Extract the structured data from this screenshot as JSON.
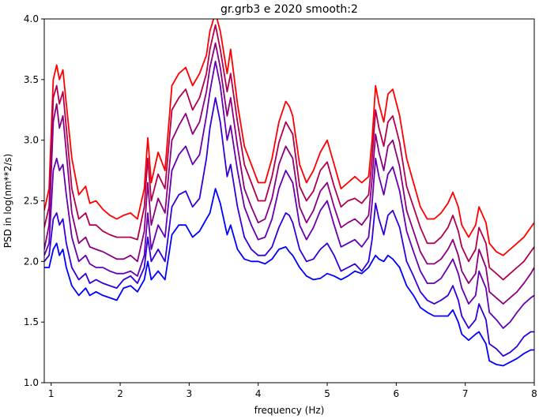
{
  "chart_data": {
    "type": "line",
    "title": "gr.grb3 e 2020 smooth:2",
    "xlabel": "frequency (Hz)",
    "ylabel": "PSD in log(nm**2/s)",
    "xlim": [
      0.9,
      8.0
    ],
    "ylim": [
      1.0,
      4.0
    ],
    "xticks": [
      "1",
      "2",
      "3",
      "4",
      "5",
      "6",
      "7",
      "8"
    ],
    "yticks": [
      "1.0",
      "1.5",
      "2.0",
      "2.5",
      "3.0",
      "3.5",
      "4.0"
    ],
    "grid": false,
    "legend": "none",
    "series": [
      {
        "color": "#ff0000",
        "x": [
          0.9,
          0.97,
          1.03,
          1.08,
          1.12,
          1.17,
          1.22,
          1.3,
          1.4,
          1.5,
          1.56,
          1.65,
          1.75,
          1.85,
          1.95,
          2.05,
          2.15,
          2.25,
          2.35,
          2.4,
          2.45,
          2.55,
          2.65,
          2.75,
          2.85,
          2.95,
          3.05,
          3.15,
          3.25,
          3.3,
          3.38,
          3.45,
          3.55,
          3.6,
          3.7,
          3.8,
          3.9,
          4.0,
          4.1,
          4.2,
          4.3,
          4.4,
          4.45,
          4.5,
          4.6,
          4.7,
          4.8,
          4.9,
          5.0,
          5.1,
          5.2,
          5.3,
          5.4,
          5.5,
          5.6,
          5.65,
          5.7,
          5.75,
          5.82,
          5.88,
          5.95,
          6.05,
          6.15,
          6.25,
          6.35,
          6.45,
          6.55,
          6.65,
          6.75,
          6.82,
          6.9,
          6.95,
          7.05,
          7.15,
          7.2,
          7.3,
          7.35,
          7.45,
          7.55,
          7.65,
          7.75,
          7.85,
          7.95,
          8.0
        ],
        "y": [
          2.42,
          2.6,
          3.5,
          3.62,
          3.5,
          3.58,
          3.3,
          2.85,
          2.55,
          2.62,
          2.48,
          2.5,
          2.43,
          2.38,
          2.35,
          2.38,
          2.4,
          2.35,
          2.6,
          3.02,
          2.65,
          2.9,
          2.75,
          3.45,
          3.55,
          3.6,
          3.45,
          3.55,
          3.7,
          3.9,
          4.05,
          3.9,
          3.55,
          3.75,
          3.3,
          2.95,
          2.8,
          2.65,
          2.65,
          2.85,
          3.15,
          3.32,
          3.28,
          3.2,
          2.8,
          2.65,
          2.75,
          2.9,
          3.0,
          2.8,
          2.6,
          2.65,
          2.7,
          2.65,
          2.7,
          3.0,
          3.45,
          3.3,
          3.15,
          3.38,
          3.42,
          3.2,
          2.85,
          2.65,
          2.45,
          2.35,
          2.35,
          2.4,
          2.48,
          2.57,
          2.45,
          2.3,
          2.2,
          2.3,
          2.45,
          2.32,
          2.15,
          2.08,
          2.05,
          2.1,
          2.15,
          2.2,
          2.28,
          2.32
        ]
      },
      {
        "color": "#b2004d",
        "x": [
          0.9,
          0.97,
          1.03,
          1.08,
          1.12,
          1.17,
          1.22,
          1.3,
          1.4,
          1.5,
          1.56,
          1.65,
          1.75,
          1.85,
          1.95,
          2.05,
          2.15,
          2.25,
          2.35,
          2.4,
          2.45,
          2.55,
          2.65,
          2.75,
          2.85,
          2.95,
          3.05,
          3.15,
          3.25,
          3.3,
          3.38,
          3.45,
          3.55,
          3.6,
          3.7,
          3.8,
          3.9,
          4.0,
          4.1,
          4.2,
          4.3,
          4.4,
          4.45,
          4.5,
          4.6,
          4.7,
          4.8,
          4.9,
          5.0,
          5.1,
          5.2,
          5.3,
          5.4,
          5.5,
          5.6,
          5.65,
          5.7,
          5.75,
          5.82,
          5.88,
          5.95,
          6.05,
          6.15,
          6.25,
          6.35,
          6.45,
          6.55,
          6.65,
          6.75,
          6.82,
          6.9,
          6.95,
          7.05,
          7.15,
          7.2,
          7.3,
          7.35,
          7.45,
          7.55,
          7.65,
          7.75,
          7.85,
          7.95,
          8.0
        ],
        "y": [
          2.28,
          2.45,
          3.35,
          3.45,
          3.3,
          3.4,
          3.1,
          2.6,
          2.35,
          2.4,
          2.3,
          2.3,
          2.25,
          2.22,
          2.2,
          2.2,
          2.2,
          2.18,
          2.45,
          2.85,
          2.5,
          2.72,
          2.6,
          3.25,
          3.35,
          3.42,
          3.25,
          3.35,
          3.55,
          3.75,
          3.95,
          3.75,
          3.4,
          3.55,
          3.15,
          2.8,
          2.65,
          2.5,
          2.5,
          2.7,
          2.98,
          3.15,
          3.1,
          3.05,
          2.62,
          2.5,
          2.58,
          2.75,
          2.82,
          2.62,
          2.45,
          2.5,
          2.52,
          2.48,
          2.55,
          2.85,
          3.25,
          3.1,
          2.95,
          3.15,
          3.2,
          2.98,
          2.62,
          2.45,
          2.28,
          2.15,
          2.15,
          2.2,
          2.28,
          2.38,
          2.25,
          2.12,
          2.0,
          2.1,
          2.28,
          2.15,
          1.95,
          1.9,
          1.85,
          1.9,
          1.95,
          2.0,
          2.08,
          2.12
        ]
      },
      {
        "color": "#8c0080",
        "x": [
          0.9,
          0.97,
          1.03,
          1.08,
          1.12,
          1.17,
          1.22,
          1.3,
          1.4,
          1.5,
          1.56,
          1.65,
          1.75,
          1.85,
          1.95,
          2.05,
          2.15,
          2.25,
          2.35,
          2.4,
          2.45,
          2.55,
          2.65,
          2.75,
          2.85,
          2.95,
          3.05,
          3.15,
          3.25,
          3.3,
          3.38,
          3.45,
          3.55,
          3.6,
          3.7,
          3.8,
          3.9,
          4.0,
          4.1,
          4.2,
          4.3,
          4.4,
          4.45,
          4.5,
          4.6,
          4.7,
          4.8,
          4.9,
          5.0,
          5.1,
          5.2,
          5.3,
          5.4,
          5.5,
          5.6,
          5.65,
          5.7,
          5.75,
          5.82,
          5.88,
          5.95,
          6.05,
          6.15,
          6.25,
          6.35,
          6.45,
          6.55,
          6.65,
          6.75,
          6.82,
          6.9,
          6.95,
          7.05,
          7.15,
          7.2,
          7.3,
          7.35,
          7.45,
          7.55,
          7.65,
          7.75,
          7.85,
          7.95,
          8.0
        ],
        "y": [
          2.1,
          2.3,
          3.15,
          3.3,
          3.1,
          3.2,
          2.9,
          2.4,
          2.15,
          2.2,
          2.12,
          2.1,
          2.08,
          2.05,
          2.02,
          2.02,
          2.05,
          2.0,
          2.25,
          2.65,
          2.3,
          2.52,
          2.4,
          3.0,
          3.12,
          3.22,
          3.05,
          3.15,
          3.4,
          3.6,
          3.8,
          3.6,
          3.2,
          3.35,
          2.95,
          2.6,
          2.45,
          2.32,
          2.35,
          2.52,
          2.8,
          2.95,
          2.9,
          2.85,
          2.45,
          2.32,
          2.42,
          2.58,
          2.65,
          2.45,
          2.28,
          2.32,
          2.35,
          2.3,
          2.38,
          2.68,
          3.05,
          2.9,
          2.75,
          2.95,
          3.0,
          2.78,
          2.42,
          2.25,
          2.08,
          1.98,
          1.98,
          2.02,
          2.1,
          2.18,
          2.05,
          1.92,
          1.82,
          1.9,
          2.1,
          1.95,
          1.75,
          1.7,
          1.65,
          1.7,
          1.75,
          1.82,
          1.9,
          1.95
        ]
      },
      {
        "color": "#6600b2",
        "x": [
          0.9,
          0.97,
          1.03,
          1.08,
          1.12,
          1.17,
          1.22,
          1.3,
          1.4,
          1.5,
          1.56,
          1.65,
          1.75,
          1.85,
          1.95,
          2.05,
          2.15,
          2.25,
          2.35,
          2.4,
          2.45,
          2.55,
          2.65,
          2.75,
          2.85,
          2.95,
          3.05,
          3.15,
          3.25,
          3.3,
          3.38,
          3.45,
          3.55,
          3.6,
          3.7,
          3.8,
          3.9,
          4.0,
          4.1,
          4.2,
          4.3,
          4.4,
          4.45,
          4.5,
          4.6,
          4.7,
          4.8,
          4.9,
          5.0,
          5.1,
          5.2,
          5.3,
          5.4,
          5.5,
          5.6,
          5.65,
          5.7,
          5.75,
          5.82,
          5.88,
          5.95,
          6.05,
          6.15,
          6.25,
          6.35,
          6.45,
          6.55,
          6.65,
          6.75,
          6.82,
          6.9,
          6.95,
          7.05,
          7.15,
          7.2,
          7.3,
          7.35,
          7.45,
          7.55,
          7.65,
          7.75,
          7.85,
          7.95,
          8.0
        ],
        "y": [
          2.05,
          2.15,
          2.75,
          2.85,
          2.75,
          2.8,
          2.55,
          2.2,
          2.0,
          2.05,
          1.98,
          1.95,
          1.95,
          1.92,
          1.9,
          1.9,
          1.92,
          1.88,
          2.05,
          2.4,
          2.1,
          2.3,
          2.2,
          2.75,
          2.88,
          2.95,
          2.8,
          2.88,
          3.2,
          3.4,
          3.65,
          3.45,
          3.0,
          3.12,
          2.75,
          2.45,
          2.3,
          2.18,
          2.2,
          2.35,
          2.6,
          2.75,
          2.7,
          2.65,
          2.3,
          2.18,
          2.28,
          2.42,
          2.5,
          2.3,
          2.12,
          2.15,
          2.18,
          2.12,
          2.2,
          2.48,
          2.85,
          2.7,
          2.55,
          2.72,
          2.78,
          2.58,
          2.25,
          2.08,
          1.92,
          1.82,
          1.82,
          1.86,
          1.95,
          2.02,
          1.9,
          1.78,
          1.65,
          1.72,
          1.92,
          1.78,
          1.58,
          1.52,
          1.45,
          1.5,
          1.58,
          1.65,
          1.7,
          1.72
        ]
      },
      {
        "color": "#3300d9",
        "x": [
          0.9,
          0.97,
          1.03,
          1.08,
          1.12,
          1.17,
          1.22,
          1.3,
          1.4,
          1.5,
          1.56,
          1.65,
          1.75,
          1.85,
          1.95,
          2.05,
          2.15,
          2.25,
          2.35,
          2.4,
          2.45,
          2.55,
          2.65,
          2.75,
          2.85,
          2.95,
          3.05,
          3.15,
          3.25,
          3.3,
          3.38,
          3.45,
          3.55,
          3.6,
          3.7,
          3.8,
          3.9,
          4.0,
          4.1,
          4.2,
          4.3,
          4.4,
          4.45,
          4.5,
          4.6,
          4.7,
          4.8,
          4.9,
          5.0,
          5.1,
          5.2,
          5.3,
          5.4,
          5.5,
          5.6,
          5.65,
          5.7,
          5.75,
          5.82,
          5.88,
          5.95,
          6.05,
          6.15,
          6.25,
          6.35,
          6.45,
          6.55,
          6.65,
          6.75,
          6.82,
          6.9,
          6.95,
          7.05,
          7.15,
          7.2,
          7.3,
          7.35,
          7.45,
          7.55,
          7.65,
          7.75,
          7.85,
          7.95,
          8.0
        ],
        "y": [
          2.0,
          2.05,
          2.35,
          2.4,
          2.3,
          2.35,
          2.15,
          1.95,
          1.85,
          1.9,
          1.82,
          1.85,
          1.82,
          1.8,
          1.78,
          1.85,
          1.88,
          1.82,
          1.95,
          2.2,
          2.0,
          2.1,
          2.0,
          2.45,
          2.55,
          2.58,
          2.45,
          2.52,
          2.85,
          3.1,
          3.35,
          3.15,
          2.7,
          2.8,
          2.45,
          2.2,
          2.1,
          2.05,
          2.05,
          2.12,
          2.28,
          2.4,
          2.38,
          2.32,
          2.1,
          2.0,
          2.02,
          2.1,
          2.15,
          2.05,
          1.92,
          1.95,
          1.98,
          1.92,
          2.0,
          2.18,
          2.48,
          2.35,
          2.22,
          2.38,
          2.42,
          2.28,
          2.0,
          1.88,
          1.75,
          1.68,
          1.65,
          1.68,
          1.72,
          1.8,
          1.68,
          1.55,
          1.45,
          1.52,
          1.65,
          1.52,
          1.32,
          1.28,
          1.22,
          1.25,
          1.3,
          1.38,
          1.42,
          1.42
        ]
      },
      {
        "color": "#0000ff",
        "x": [
          0.9,
          0.97,
          1.03,
          1.08,
          1.12,
          1.17,
          1.22,
          1.3,
          1.4,
          1.5,
          1.56,
          1.65,
          1.75,
          1.85,
          1.95,
          2.05,
          2.15,
          2.25,
          2.35,
          2.4,
          2.45,
          2.55,
          2.65,
          2.75,
          2.85,
          2.95,
          3.05,
          3.15,
          3.25,
          3.3,
          3.38,
          3.45,
          3.55,
          3.6,
          3.7,
          3.8,
          3.9,
          4.0,
          4.1,
          4.2,
          4.3,
          4.4,
          4.45,
          4.5,
          4.6,
          4.7,
          4.8,
          4.9,
          5.0,
          5.1,
          5.2,
          5.3,
          5.4,
          5.5,
          5.6,
          5.65,
          5.7,
          5.75,
          5.82,
          5.88,
          5.95,
          6.05,
          6.15,
          6.25,
          6.35,
          6.45,
          6.55,
          6.65,
          6.75,
          6.82,
          6.9,
          6.95,
          7.05,
          7.15,
          7.2,
          7.3,
          7.35,
          7.45,
          7.55,
          7.65,
          7.75,
          7.85,
          7.95,
          8.0
        ],
        "y": [
          1.95,
          1.95,
          2.1,
          2.15,
          2.05,
          2.1,
          1.95,
          1.8,
          1.72,
          1.78,
          1.72,
          1.75,
          1.72,
          1.7,
          1.68,
          1.78,
          1.8,
          1.75,
          1.85,
          2.0,
          1.85,
          1.92,
          1.85,
          2.22,
          2.3,
          2.3,
          2.2,
          2.25,
          2.35,
          2.4,
          2.6,
          2.48,
          2.22,
          2.3,
          2.1,
          2.02,
          2.0,
          2.0,
          1.98,
          2.02,
          2.1,
          2.12,
          2.08,
          2.05,
          1.95,
          1.88,
          1.85,
          1.86,
          1.9,
          1.88,
          1.85,
          1.88,
          1.92,
          1.9,
          1.95,
          2.0,
          2.05,
          2.02,
          2.0,
          2.05,
          2.02,
          1.95,
          1.8,
          1.72,
          1.62,
          1.58,
          1.55,
          1.55,
          1.55,
          1.6,
          1.5,
          1.4,
          1.35,
          1.4,
          1.42,
          1.32,
          1.18,
          1.15,
          1.14,
          1.17,
          1.2,
          1.24,
          1.27,
          1.27
        ]
      }
    ]
  }
}
